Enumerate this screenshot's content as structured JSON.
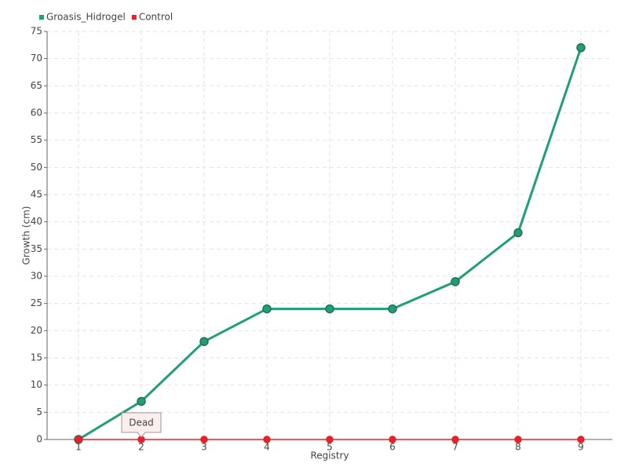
{
  "chart_data": {
    "type": "line",
    "x_label": "Registry",
    "y_label": "Growth (cm)",
    "categories": [
      "1",
      "2",
      "3",
      "4",
      "5",
      "6",
      "7",
      "8",
      "9"
    ],
    "series": [
      {
        "name": "Groasis_Hidrogel",
        "color": "#1f9e7a",
        "values": [
          0,
          7,
          18,
          24,
          24,
          24,
          29,
          38,
          72
        ]
      },
      {
        "name": "Control",
        "color": "#e8202a",
        "values": [
          0,
          0,
          0,
          0,
          0,
          0,
          0,
          0,
          0
        ]
      }
    ],
    "annotation": "Dead",
    "ylim": [
      0,
      75
    ],
    "yticks": [
      0,
      5,
      10,
      15,
      20,
      25,
      30,
      35,
      40,
      45,
      50,
      55,
      60,
      65,
      70,
      75
    ],
    "grid": true,
    "legend": "top-left"
  }
}
